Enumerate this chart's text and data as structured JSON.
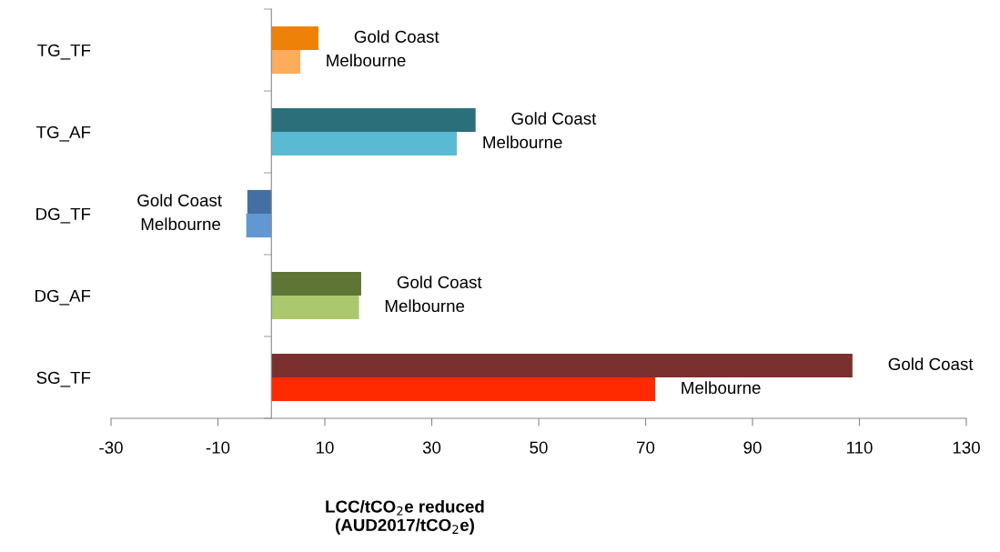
{
  "chart_data": {
    "type": "bar",
    "orientation": "horizontal",
    "categories": [
      "TG_TF",
      "TG_AF",
      "DG_TF",
      "DG_AF",
      "SG_TF"
    ],
    "xlabel": "LCC/tCO$_{2}$e reduced\n(AUD2017/tCO$_{2}$e)",
    "series": [
      {
        "name": "Gold Coast",
        "colors": [
          "#ee8208",
          "#2a6f7a",
          "#436fa3",
          "#5f7536",
          "#7a302e"
        ],
        "values": [
          8.8,
          38.2,
          -4.5,
          16.8,
          108.7
        ]
      },
      {
        "name": "Melbourne",
        "colors": [
          "#fdab5d",
          "#5bbad3",
          "#6198cf",
          "#acc86e",
          "#ff2a00"
        ],
        "values": [
          5.4,
          34.7,
          -4.7,
          16.4,
          71.8
        ]
      }
    ],
    "xlim": [
      -30,
      130
    ],
    "xticks": [
      -30,
      -10,
      10,
      30,
      50,
      70,
      90,
      110,
      130
    ],
    "grid": false,
    "legend": false
  }
}
